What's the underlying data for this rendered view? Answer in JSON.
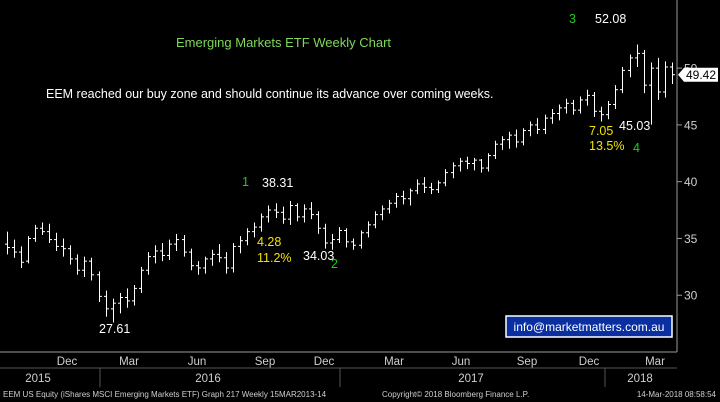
{
  "chart_data": {
    "type": "ohlc",
    "title": "Emerging Markets ETF Weekly Chart",
    "commentary": "EEM reached our buy zone and should continue its advance over coming weeks.",
    "ylim": [
      25,
      56
    ],
    "y_ticks": [
      30,
      35,
      40,
      45,
      50
    ],
    "last_price": 49.42,
    "x_month_labels": [
      "Dec",
      "Mar",
      "Jun",
      "Sep",
      "Dec",
      "Mar",
      "Jun",
      "Sep",
      "Dec",
      "Mar"
    ],
    "x_year_labels": [
      "2015",
      "2016",
      "2017",
      "2018"
    ],
    "annotations": [
      {
        "text": "27.61",
        "color": "#ffffff"
      },
      {
        "text": "38.31",
        "color": "#ffffff"
      },
      {
        "text": "1",
        "color": "#22cc22"
      },
      {
        "text": "4.28",
        "color": "#f2e200"
      },
      {
        "text": "11.2%",
        "color": "#f2e200"
      },
      {
        "text": "34.03",
        "color": "#ffffff"
      },
      {
        "text": "2",
        "color": "#22cc22"
      },
      {
        "text": "3",
        "color": "#22cc22"
      },
      {
        "text": "52.08",
        "color": "#ffffff"
      },
      {
        "text": "7.05",
        "color": "#f2e200"
      },
      {
        "text": "45.03",
        "color": "#ffffff"
      },
      {
        "text": "13.5%",
        "color": "#f2e200"
      },
      {
        "text": "4",
        "color": "#22cc22"
      }
    ],
    "contact": "info@marketmatters.com.au",
    "series": [
      {
        "ohlc": [
          [
            34.5,
            35.6,
            33.6,
            34.2
          ],
          [
            34.2,
            34.9,
            33.3,
            33.8
          ],
          [
            33.8,
            34.3,
            32.4,
            32.9
          ],
          [
            33.0,
            35.2,
            32.8,
            35.0
          ],
          [
            35.0,
            36.2,
            34.7,
            35.9
          ],
          [
            35.9,
            36.4,
            35.3,
            35.6
          ],
          [
            35.6,
            36.3,
            34.6,
            34.9
          ],
          [
            34.9,
            35.5,
            33.9,
            34.3
          ],
          [
            34.3,
            35.0,
            33.4,
            34.1
          ],
          [
            34.1,
            34.4,
            32.7,
            33.2
          ],
          [
            33.2,
            33.6,
            31.8,
            32.2
          ],
          [
            32.2,
            33.4,
            31.6,
            33.0
          ],
          [
            33.0,
            33.3,
            31.3,
            31.8
          ],
          [
            31.8,
            32.1,
            29.4,
            29.9
          ],
          [
            29.9,
            30.4,
            28.1,
            28.8
          ],
          [
            28.8,
            29.7,
            27.6,
            29.3
          ],
          [
            29.3,
            30.2,
            28.4,
            29.8
          ],
          [
            29.8,
            30.6,
            28.9,
            29.5
          ],
          [
            29.5,
            30.9,
            29.1,
            30.6
          ],
          [
            30.6,
            32.5,
            30.2,
            32.2
          ],
          [
            32.2,
            33.8,
            31.8,
            33.4
          ],
          [
            33.4,
            34.4,
            32.8,
            33.9
          ],
          [
            33.9,
            34.6,
            33.0,
            33.5
          ],
          [
            33.5,
            34.9,
            33.1,
            34.5
          ],
          [
            34.5,
            35.4,
            33.9,
            34.9
          ],
          [
            34.9,
            35.3,
            33.4,
            33.8
          ],
          [
            33.8,
            34.1,
            32.2,
            32.6
          ],
          [
            32.6,
            33.0,
            31.8,
            32.4
          ],
          [
            32.4,
            33.4,
            31.9,
            33.2
          ],
          [
            33.2,
            34.0,
            32.6,
            33.6
          ],
          [
            33.6,
            34.5,
            32.9,
            33.3
          ],
          [
            33.3,
            33.8,
            31.9,
            32.4
          ],
          [
            32.4,
            34.6,
            32.0,
            34.3
          ],
          [
            34.3,
            35.2,
            33.7,
            34.8
          ],
          [
            34.8,
            35.9,
            34.4,
            35.6
          ],
          [
            35.6,
            36.4,
            35.1,
            36.0
          ],
          [
            36.0,
            37.2,
            35.6,
            36.9
          ],
          [
            36.9,
            37.9,
            36.4,
            37.5
          ],
          [
            37.5,
            38.1,
            36.8,
            37.3
          ],
          [
            37.3,
            37.8,
            36.3,
            36.7
          ],
          [
            36.7,
            38.3,
            36.2,
            37.9
          ],
          [
            37.9,
            38.1,
            36.5,
            36.9
          ],
          [
            36.9,
            38.0,
            36.4,
            37.6
          ],
          [
            37.6,
            38.2,
            36.7,
            37.1
          ],
          [
            37.1,
            37.4,
            35.4,
            35.9
          ],
          [
            35.9,
            36.3,
            34.1,
            34.6
          ],
          [
            34.6,
            35.4,
            34.0,
            34.9
          ],
          [
            34.9,
            36.0,
            34.6,
            35.7
          ],
          [
            35.7,
            35.9,
            34.2,
            34.7
          ],
          [
            34.7,
            35.0,
            34.0,
            34.4
          ],
          [
            34.4,
            35.7,
            34.1,
            35.5
          ],
          [
            35.5,
            36.5,
            35.1,
            36.2
          ],
          [
            36.2,
            37.4,
            35.9,
            37.1
          ],
          [
            37.1,
            37.9,
            36.6,
            37.6
          ],
          [
            37.6,
            38.4,
            37.2,
            38.1
          ],
          [
            38.1,
            39.0,
            37.7,
            38.7
          ],
          [
            38.7,
            39.2,
            38.0,
            38.5
          ],
          [
            38.5,
            39.4,
            37.9,
            39.2
          ],
          [
            39.2,
            40.2,
            38.9,
            39.8
          ],
          [
            39.8,
            40.4,
            39.0,
            39.5
          ],
          [
            39.5,
            39.9,
            38.9,
            39.3
          ],
          [
            39.3,
            40.1,
            39.0,
            39.9
          ],
          [
            39.9,
            41.1,
            39.6,
            40.8
          ],
          [
            40.8,
            41.7,
            40.3,
            41.4
          ],
          [
            41.4,
            42.1,
            40.9,
            41.8
          ],
          [
            41.8,
            42.2,
            41.1,
            41.6
          ],
          [
            41.6,
            42.1,
            41.0,
            41.9
          ],
          [
            41.9,
            42.0,
            40.8,
            41.2
          ],
          [
            41.2,
            42.5,
            40.9,
            42.3
          ],
          [
            42.3,
            43.6,
            42.0,
            43.3
          ],
          [
            43.3,
            44.0,
            42.8,
            43.7
          ],
          [
            43.7,
            44.4,
            42.9,
            44.1
          ],
          [
            44.1,
            44.6,
            43.0,
            43.5
          ],
          [
            43.5,
            44.7,
            43.2,
            44.5
          ],
          [
            44.5,
            45.3,
            44.0,
            45.0
          ],
          [
            45.0,
            45.6,
            44.2,
            44.6
          ],
          [
            44.6,
            45.9,
            44.2,
            45.6
          ],
          [
            45.6,
            46.4,
            45.1,
            46.0
          ],
          [
            46.0,
            46.8,
            45.4,
            46.5
          ],
          [
            46.5,
            47.3,
            46.0,
            46.9
          ],
          [
            46.9,
            47.2,
            45.9,
            46.3
          ],
          [
            46.3,
            47.5,
            46.0,
            47.2
          ],
          [
            47.2,
            48.1,
            46.7,
            47.6
          ],
          [
            47.6,
            47.9,
            45.7,
            46.2
          ],
          [
            46.2,
            46.6,
            45.3,
            45.9
          ],
          [
            45.9,
            47.1,
            45.5,
            46.8
          ],
          [
            46.8,
            48.5,
            46.4,
            48.1
          ],
          [
            48.1,
            50.1,
            47.8,
            49.8
          ],
          [
            49.8,
            51.2,
            49.2,
            50.9
          ],
          [
            50.9,
            52.08,
            50.1,
            51.3
          ],
          [
            51.3,
            51.6,
            47.8,
            48.5
          ],
          [
            48.5,
            50.5,
            45.03,
            50.0
          ],
          [
            50.0,
            50.9,
            47.2,
            47.9
          ],
          [
            47.9,
            50.6,
            47.4,
            50.1
          ],
          [
            50.1,
            50.5,
            48.6,
            49.42
          ]
        ]
      }
    ]
  },
  "footer": {
    "left": "EEM US Equity (iShares MSCI Emerging Markets ETF) Graph 217  Weekly 15MAR2013-14",
    "middle": "Copyright© 2018 Bloomberg Finance L.P.",
    "right": "14-Mar-2018 08:58:54"
  },
  "colors": {
    "background": "#000000",
    "bars": "#ffffff",
    "axis": "#9a9a9a",
    "title": "#7fd85a",
    "annotation_green": "#22cc22",
    "annotation_yellow": "#f2e200",
    "contact_box": "#0a2fa0"
  }
}
